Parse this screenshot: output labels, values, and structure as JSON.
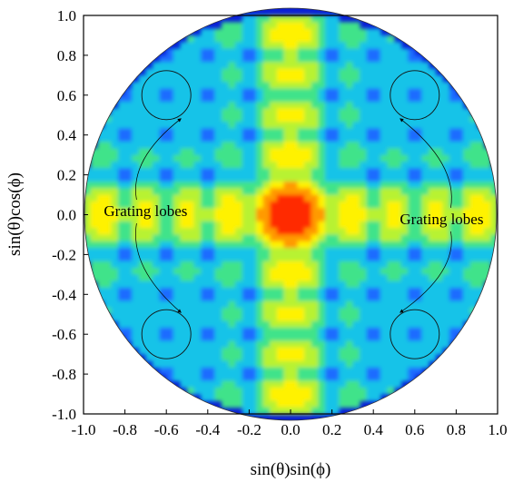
{
  "chart_data": {
    "type": "heatmap",
    "title": "",
    "xlabel": "sin(θ)sin(ϕ)",
    "ylabel": "sin(θ)cos(ϕ)",
    "xlim": [
      -1.0,
      1.0
    ],
    "ylim": [
      -1.0,
      1.0
    ],
    "x_ticks": [
      "-1.0",
      "-0.8",
      "-0.6",
      "-0.4",
      "-0.2",
      "0.0",
      "0.2",
      "0.4",
      "0.6",
      "0.8",
      "1.0"
    ],
    "y_ticks": [
      "-1.0",
      "-0.8",
      "-0.6",
      "-0.4",
      "-0.2",
      "0.0",
      "0.2",
      "0.4",
      "0.6",
      "0.8",
      "1.0"
    ],
    "x_tick_values": [
      -1.0,
      -0.8,
      -0.6,
      -0.4,
      -0.2,
      0.0,
      0.2,
      0.4,
      0.6,
      0.8,
      1.0
    ],
    "y_tick_values": [
      -1.0,
      -0.8,
      -0.6,
      -0.4,
      -0.2,
      0.0,
      0.2,
      0.4,
      0.6,
      0.8,
      1.0
    ],
    "grid": false,
    "colormap": [
      "#0a1fd6",
      "#1b6cff",
      "#19c3e8",
      "#3fe38a",
      "#b8f233",
      "#fff200",
      "#ff9a00",
      "#ff2a00"
    ],
    "visible_region": "unit circle",
    "main_lobe": [
      0.0,
      0.0
    ],
    "grating_lobes": [
      {
        "x": -0.6,
        "y": 0.6
      },
      {
        "x": 0.6,
        "y": 0.6
      },
      {
        "x": -0.6,
        "y": -0.6
      },
      {
        "x": 0.6,
        "y": -0.6
      }
    ],
    "annotations": [
      {
        "text": "Grating lobes",
        "x": -0.7,
        "y": 0.02
      },
      {
        "text": "Grating lobes",
        "x": 0.73,
        "y": -0.02
      }
    ]
  }
}
